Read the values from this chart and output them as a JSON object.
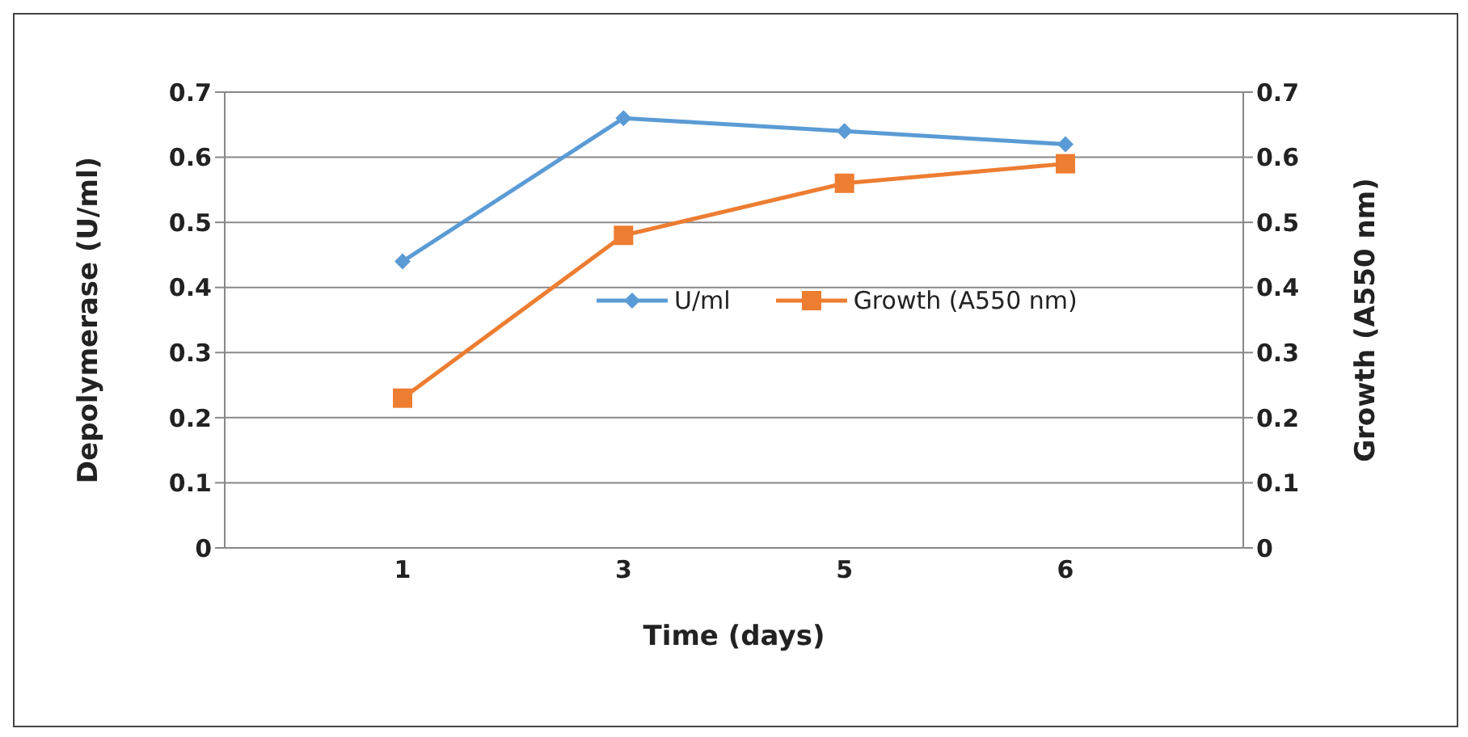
{
  "chart_data": {
    "type": "line",
    "xlabel": "Time (days)",
    "ylabel": "Depolymerase (U/ml)",
    "y2label": "Growth (A550 nm)",
    "categories": [
      "1",
      "3",
      "5",
      "6"
    ],
    "series": [
      {
        "name": "U/ml",
        "color": "#5b9bd5",
        "values": [
          0.44,
          0.66,
          0.64,
          0.62
        ],
        "marker": "diamond"
      },
      {
        "name": "Growth (A550 nm)",
        "color": "#ed7d31",
        "values": [
          0.23,
          0.48,
          0.56,
          0.59
        ],
        "marker": "square",
        "axis": "y2"
      }
    ],
    "ylim": [
      0,
      0.7
    ],
    "yticks": [
      0,
      0.1,
      0.2,
      0.3,
      0.4,
      0.5,
      0.6,
      0.7
    ],
    "y2lim": [
      0,
      0.7
    ],
    "y2ticks": [
      0,
      0.1,
      0.2,
      0.3,
      0.4,
      0.5,
      0.6,
      0.7
    ],
    "grid": "y",
    "legend": "center"
  }
}
